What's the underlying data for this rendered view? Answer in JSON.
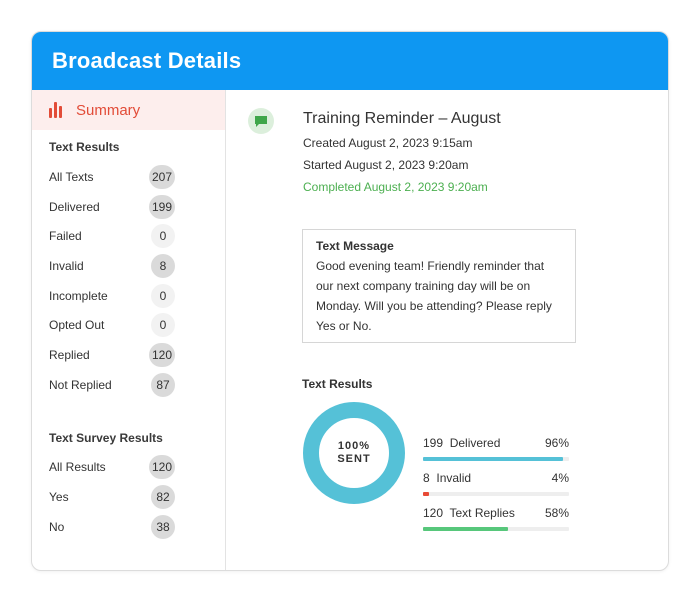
{
  "header": {
    "title": "Broadcast Details"
  },
  "sidebar": {
    "summary_label": "Summary",
    "text_results_title": "Text Results",
    "text_results": [
      {
        "label": "All Texts",
        "count": "207"
      },
      {
        "label": "Delivered",
        "count": "199"
      },
      {
        "label": "Failed",
        "count": "0"
      },
      {
        "label": "Invalid",
        "count": "8"
      },
      {
        "label": "Incomplete",
        "count": "0"
      },
      {
        "label": "Opted Out",
        "count": "0"
      },
      {
        "label": "Replied",
        "count": "120"
      },
      {
        "label": "Not Replied",
        "count": "87"
      }
    ],
    "survey_title": "Text Survey Results",
    "survey_results": [
      {
        "label": "All Results",
        "count": "120"
      },
      {
        "label": "Yes",
        "count": "82"
      },
      {
        "label": "No",
        "count": "38"
      }
    ]
  },
  "broadcast": {
    "title": "Training Reminder – August",
    "created": "Created August 2, 2023  9:15am",
    "started": "Started August 2, 2023  9:20am",
    "completed": "Completed August 2, 2023  9:20am"
  },
  "message": {
    "title": "Text Message",
    "body": "Good evening team! Friendly reminder that our next company training day will be on Monday. Will you be attending? Please reply Yes or No."
  },
  "results": {
    "title": "Text Results",
    "donut_percent": "100%",
    "donut_label": "SENT",
    "stats": [
      {
        "count": "199",
        "label": "Delivered",
        "percent": "96%",
        "fraction": 0.96,
        "color": "#55c1d7"
      },
      {
        "count": "8",
        "label": "Invalid",
        "percent": "4%",
        "fraction": 0.04,
        "color": "#e84a36"
      },
      {
        "count": "120",
        "label": "Text Replies",
        "percent": "58%",
        "fraction": 0.58,
        "color": "#57c77b"
      }
    ]
  },
  "colors": {
    "header": "#0e97f2",
    "accent_red": "#e24c38",
    "completed_green": "#4caf50",
    "donut_delivered": "#55c1d7",
    "donut_invalid": "#e84a36"
  },
  "icons": {
    "summary": "bar-chart-icon",
    "message": "message-bubble-icon"
  }
}
